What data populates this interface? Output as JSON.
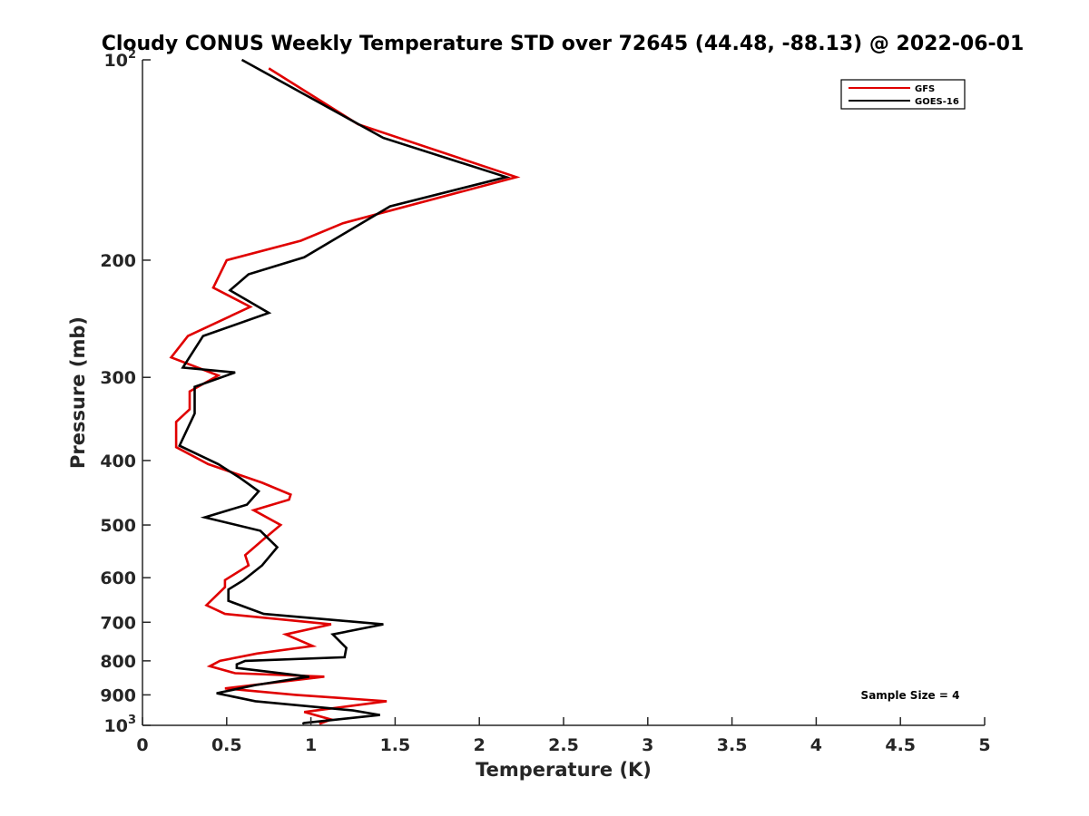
{
  "chart_data": {
    "type": "line",
    "title": "Cloudy CONUS Weekly Temperature STD over 72645 (44.48, -88.13) @ 2022-06-01",
    "xlabel": "Temperature (K)",
    "ylabel": "Pressure (mb)",
    "xlim": [
      0,
      5
    ],
    "ylim": [
      100,
      1000
    ],
    "y_scale": "log",
    "y_reversed": true,
    "x_ticks": [
      0,
      0.5,
      1,
      1.5,
      2,
      2.5,
      3,
      3.5,
      4,
      4.5,
      5
    ],
    "x_tick_labels": [
      "0",
      "0.5",
      "1",
      "1.5",
      "2",
      "2.5",
      "3",
      "3.5",
      "4",
      "4.5",
      "5"
    ],
    "y_ticks": [
      100,
      200,
      300,
      400,
      500,
      600,
      700,
      800,
      900,
      1000
    ],
    "y_tick_labels": [
      {
        "base": "10",
        "exp": "2"
      },
      {
        "base": "200",
        "exp": ""
      },
      {
        "base": "300",
        "exp": ""
      },
      {
        "base": "400",
        "exp": ""
      },
      {
        "base": "500",
        "exp": ""
      },
      {
        "base": "600",
        "exp": ""
      },
      {
        "base": "700",
        "exp": ""
      },
      {
        "base": "800",
        "exp": ""
      },
      {
        "base": "900",
        "exp": ""
      },
      {
        "base": "10",
        "exp": "3"
      }
    ],
    "grid": false,
    "legend_position": "top-right",
    "annotation": "Sample Size = 4",
    "series": [
      {
        "name": "GFS",
        "color": "#e00000",
        "points": [
          [
            0.75,
            103
          ],
          [
            1.28,
            125
          ],
          [
            2.22,
            150
          ],
          [
            1.19,
            176
          ],
          [
            0.94,
            187
          ],
          [
            0.5,
            200
          ],
          [
            0.42,
            220
          ],
          [
            0.64,
            235
          ],
          [
            0.27,
            260
          ],
          [
            0.17,
            280
          ],
          [
            0.45,
            298
          ],
          [
            0.28,
            315
          ],
          [
            0.28,
            335
          ],
          [
            0.2,
            350
          ],
          [
            0.2,
            382
          ],
          [
            0.39,
            405
          ],
          [
            0.71,
            432
          ],
          [
            0.88,
            450
          ],
          [
            0.87,
            458
          ],
          [
            0.66,
            475
          ],
          [
            0.82,
            500
          ],
          [
            0.72,
            525
          ],
          [
            0.61,
            555
          ],
          [
            0.63,
            575
          ],
          [
            0.49,
            605
          ],
          [
            0.49,
            620
          ],
          [
            0.38,
            660
          ],
          [
            0.49,
            680
          ],
          [
            1.12,
            705
          ],
          [
            0.85,
            730
          ],
          [
            1.01,
            760
          ],
          [
            0.68,
            780
          ],
          [
            0.46,
            800
          ],
          [
            0.4,
            815
          ],
          [
            0.55,
            835
          ],
          [
            1.08,
            845
          ],
          [
            0.49,
            880
          ],
          [
            0.91,
            900
          ],
          [
            1.45,
            920
          ],
          [
            0.96,
            955
          ],
          [
            1.12,
            980
          ],
          [
            1.05,
            995
          ]
        ]
      },
      {
        "name": "GOES-16",
        "color": "#000000",
        "points": [
          [
            0.59,
            100
          ],
          [
            1.43,
            131
          ],
          [
            2.16,
            150
          ],
          [
            1.47,
            166
          ],
          [
            0.96,
            198
          ],
          [
            0.63,
            210
          ],
          [
            0.52,
            222
          ],
          [
            0.75,
            240
          ],
          [
            0.36,
            260
          ],
          [
            0.24,
            290
          ],
          [
            0.55,
            295
          ],
          [
            0.31,
            310
          ],
          [
            0.31,
            340
          ],
          [
            0.22,
            380
          ],
          [
            0.45,
            405
          ],
          [
            0.58,
            425
          ],
          [
            0.69,
            445
          ],
          [
            0.62,
            466
          ],
          [
            0.37,
            487
          ],
          [
            0.7,
            510
          ],
          [
            0.8,
            540
          ],
          [
            0.71,
            575
          ],
          [
            0.6,
            605
          ],
          [
            0.51,
            625
          ],
          [
            0.51,
            650
          ],
          [
            0.72,
            680
          ],
          [
            1.43,
            705
          ],
          [
            1.13,
            730
          ],
          [
            1.21,
            765
          ],
          [
            1.2,
            790
          ],
          [
            0.61,
            800
          ],
          [
            0.56,
            810
          ],
          [
            0.56,
            820
          ],
          [
            0.99,
            845
          ],
          [
            0.67,
            870
          ],
          [
            0.44,
            895
          ],
          [
            0.67,
            920
          ],
          [
            1.25,
            950
          ],
          [
            1.41,
            965
          ],
          [
            0.96,
            992
          ],
          [
            0.95,
            995
          ]
        ]
      }
    ]
  }
}
